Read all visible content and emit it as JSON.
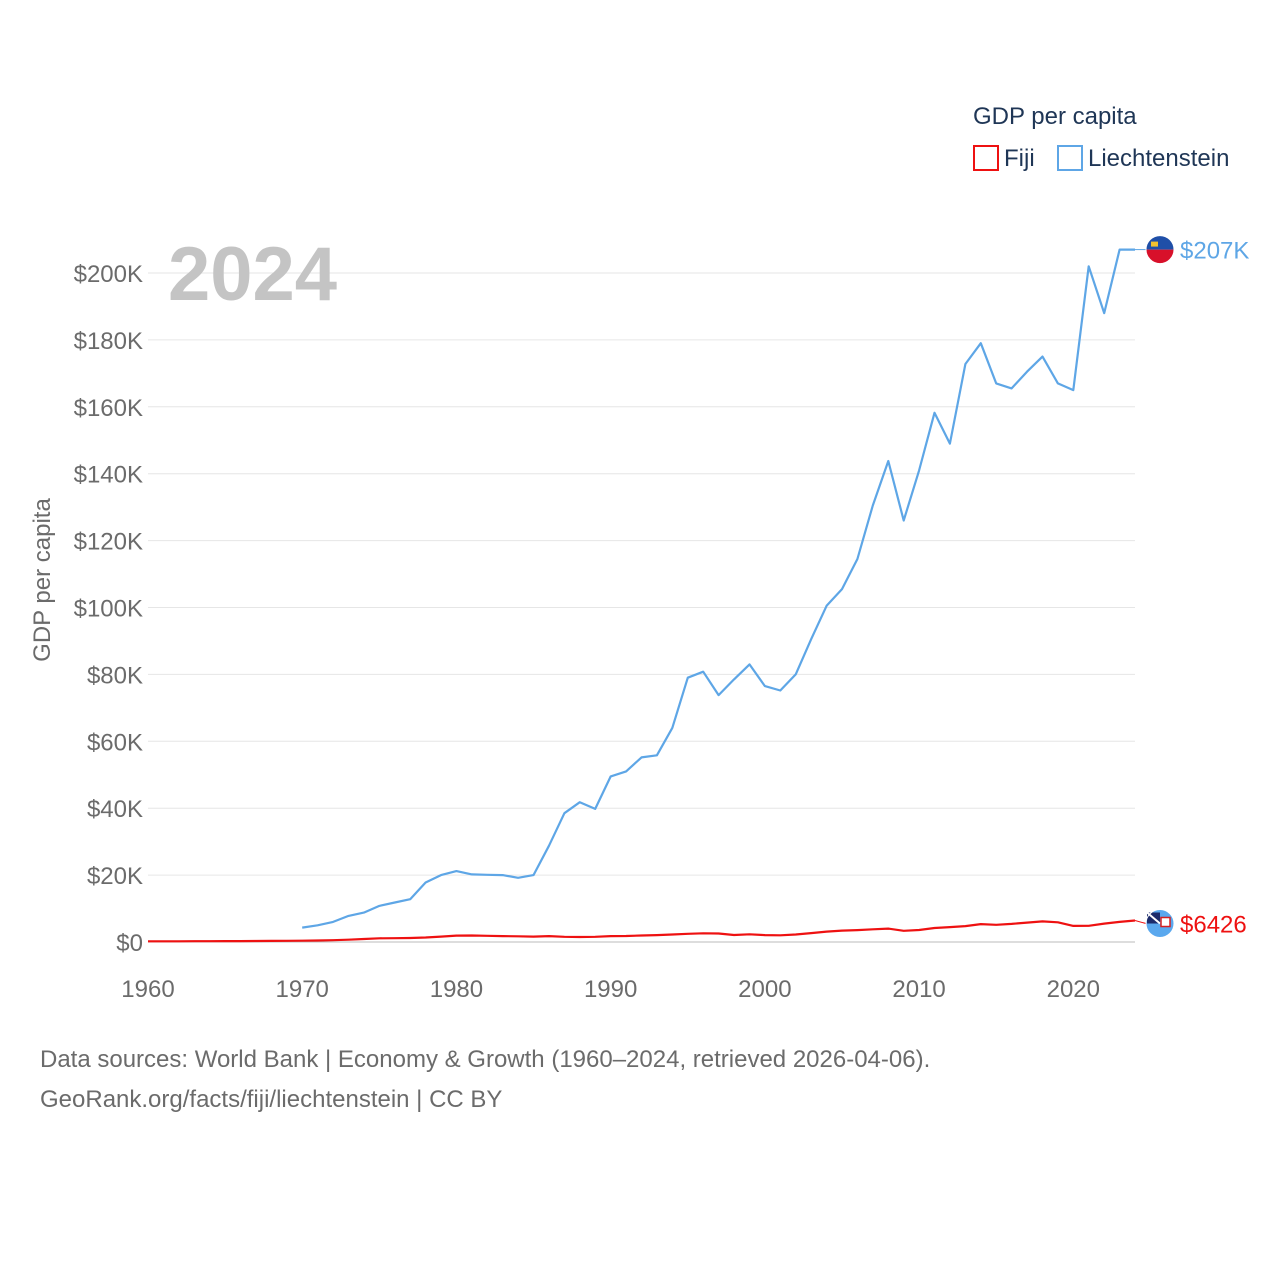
{
  "chart_data": {
    "type": "line",
    "title": "GDP per capita",
    "ylabel": "GDP per capita",
    "xlabel": "",
    "year_label": "2024",
    "xlim": [
      1960,
      2024
    ],
    "ylim": [
      0,
      200000
    ],
    "x_ticks": [
      "1960",
      "1970",
      "1980",
      "1990",
      "2000",
      "2010",
      "2020"
    ],
    "x_tick_values": [
      1960,
      1970,
      1980,
      1990,
      2000,
      2010,
      2020
    ],
    "y_ticks": [
      "$0",
      "$20K",
      "$40K",
      "$60K",
      "$80K",
      "$100K",
      "$120K",
      "$140K",
      "$160K",
      "$180K",
      "$200K"
    ],
    "y_tick_values": [
      0,
      20000,
      40000,
      60000,
      80000,
      100000,
      120000,
      140000,
      160000,
      180000,
      200000
    ],
    "legend": {
      "title": "GDP per capita",
      "position": "top-right"
    },
    "series": [
      {
        "name": "Fiji",
        "color": "#ee1111",
        "end_label": "$6426",
        "x": [
          1960,
          1961,
          1962,
          1963,
          1964,
          1965,
          1966,
          1967,
          1968,
          1969,
          1970,
          1971,
          1972,
          1973,
          1974,
          1975,
          1976,
          1977,
          1978,
          1979,
          1980,
          1981,
          1982,
          1983,
          1984,
          1985,
          1986,
          1987,
          1988,
          1989,
          1990,
          1991,
          1992,
          1993,
          1994,
          1995,
          1996,
          1997,
          1998,
          1999,
          2000,
          2001,
          2002,
          2003,
          2004,
          2005,
          2006,
          2007,
          2008,
          2009,
          2010,
          2011,
          2012,
          2013,
          2014,
          2015,
          2016,
          2017,
          2018,
          2019,
          2020,
          2021,
          2022,
          2023,
          2024
        ],
        "values": [
          200,
          210,
          220,
          230,
          240,
          260,
          280,
          300,
          320,
          350,
          400,
          450,
          550,
          700,
          900,
          1100,
          1150,
          1200,
          1350,
          1600,
          1900,
          1950,
          1850,
          1750,
          1700,
          1600,
          1750,
          1550,
          1500,
          1550,
          1750,
          1800,
          1950,
          2050,
          2250,
          2450,
          2600,
          2550,
          2100,
          2300,
          2050,
          2000,
          2250,
          2650,
          3100,
          3400,
          3550,
          3800,
          4000,
          3350,
          3600,
          4200,
          4450,
          4750,
          5350,
          5150,
          5400,
          5800,
          6150,
          5900,
          4800,
          4850,
          5500,
          6000,
          6426
        ]
      },
      {
        "name": "Liechtenstein",
        "color": "#5ea6e6",
        "end_label": "$207K",
        "x": [
          1970,
          1971,
          1972,
          1973,
          1974,
          1975,
          1976,
          1977,
          1978,
          1979,
          1980,
          1981,
          1982,
          1983,
          1984,
          1985,
          1986,
          1987,
          1988,
          1989,
          1990,
          1991,
          1992,
          1993,
          1994,
          1995,
          1996,
          1997,
          1998,
          1999,
          2000,
          2001,
          2002,
          2003,
          2004,
          2005,
          2006,
          2007,
          2008,
          2009,
          2010,
          2011,
          2012,
          2013,
          2014,
          2015,
          2016,
          2017,
          2018,
          2019,
          2020,
          2021,
          2022,
          2023,
          2024
        ],
        "values": [
          4300,
          5000,
          6000,
          7800,
          8800,
          10800,
          11800,
          12800,
          17800,
          20000,
          21200,
          20200,
          20100,
          20000,
          19200,
          20000,
          28800,
          38500,
          41800,
          39800,
          49500,
          51000,
          55200,
          55800,
          64000,
          79000,
          80800,
          73800,
          78500,
          83000,
          76500,
          75200,
          80000,
          90500,
          100500,
          105500,
          114500,
          130500,
          143800,
          126000,
          141000,
          158200,
          149000,
          172800,
          179000,
          167000,
          165500,
          170500,
          175000,
          167000,
          165000,
          202000,
          188000,
          207000,
          207000
        ]
      }
    ]
  },
  "footer": {
    "line1": "Data sources: World Bank | Economy & Growth (1960–2024, retrieved 2026-04-06).",
    "line2": "GeoRank.org/facts/fiji/liechtenstein | CC BY"
  }
}
